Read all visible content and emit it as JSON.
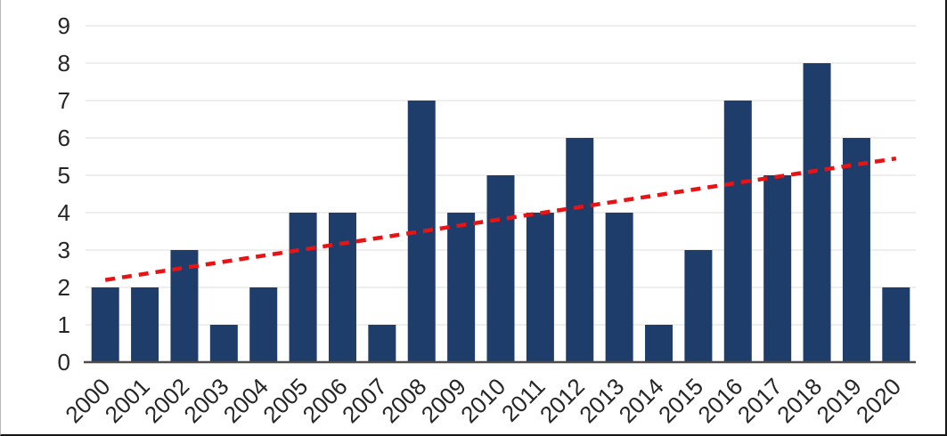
{
  "chart_data": {
    "type": "bar",
    "title": "",
    "xlabel": "",
    "ylabel": "",
    "categories": [
      "2000",
      "2001",
      "2002",
      "2003",
      "2004",
      "2005",
      "2006",
      "2007",
      "2008",
      "2009",
      "2010",
      "2011",
      "2012",
      "2013",
      "2014",
      "2015",
      "2016",
      "2017",
      "2018",
      "2019",
      "2020"
    ],
    "values": [
      2,
      2,
      3,
      1,
      2,
      4,
      4,
      1,
      7,
      4,
      5,
      4,
      6,
      4,
      1,
      3,
      7,
      5,
      8,
      6,
      2
    ],
    "ylim": [
      0,
      9
    ],
    "y_ticks": [
      "0",
      "1",
      "2",
      "3",
      "4",
      "5",
      "6",
      "7",
      "8",
      "9"
    ],
    "grid": "horizontal",
    "legend": "none",
    "trendline": {
      "type": "linear",
      "style": "dashed",
      "start_value": 2.2,
      "end_value": 5.45,
      "color": "#e61414"
    },
    "colors": {
      "bar": "#1e3d6b",
      "gridline": "#e9e9e9",
      "axis_line": "#4d4d4d",
      "tick_label": "#262626",
      "background": "#ffffff",
      "frame_border": "#161616"
    }
  }
}
